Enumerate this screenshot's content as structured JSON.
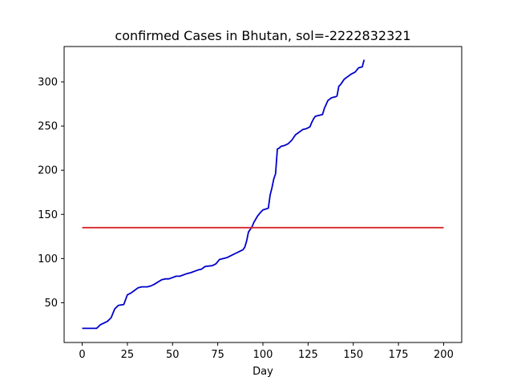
{
  "chart_data": {
    "type": "line",
    "title": "confirmed Cases in Bhutan, sol=-2222832321",
    "xlabel": "Day",
    "ylabel": "",
    "xlim": [
      -10,
      210
    ],
    "ylim": [
      5,
      340
    ],
    "xticks": [
      0,
      25,
      50,
      75,
      100,
      125,
      150,
      175,
      200
    ],
    "yticks": [
      50,
      100,
      150,
      200,
      250,
      300
    ],
    "grid": false,
    "series": [
      {
        "color": "#0000cc",
        "x": [
          0,
          8,
          10,
          12,
          14,
          16,
          18,
          20,
          23,
          25,
          27,
          29,
          31,
          33,
          36,
          38,
          40,
          44,
          46,
          48,
          52,
          54,
          58,
          60,
          64,
          66,
          68,
          72,
          74,
          76,
          78,
          80,
          83,
          85,
          87,
          89,
          90,
          91,
          92,
          93,
          94,
          95,
          97,
          99,
          100,
          103,
          104,
          105,
          106,
          107,
          108,
          109,
          110,
          112,
          114,
          116,
          118,
          120,
          122,
          124,
          126,
          127,
          128,
          129,
          131,
          133,
          134,
          136,
          138,
          140,
          141,
          142,
          143,
          144,
          145,
          147,
          149,
          151,
          153,
          155,
          156
        ],
        "values": [
          21,
          21,
          25,
          27,
          29,
          33,
          43,
          47,
          48,
          59,
          61,
          64,
          67,
          68,
          68,
          69,
          71,
          76,
          77,
          77,
          80,
          80,
          83,
          84,
          87,
          88,
          91,
          92,
          94,
          99,
          100,
          101,
          104,
          106,
          108,
          110,
          113,
          120,
          130,
          133,
          136,
          141,
          148,
          153,
          155,
          157,
          172,
          180,
          190,
          196,
          224,
          225,
          227,
          228,
          230,
          234,
          240,
          243,
          246,
          247,
          249,
          254,
          258,
          261,
          262,
          263,
          270,
          279,
          282,
          283,
          284,
          295,
          297,
          300,
          303,
          306,
          309,
          311,
          316,
          317,
          325
        ]
      },
      {
        "color": "#d62728",
        "x": [
          0,
          200
        ],
        "values": [
          135,
          135
        ]
      }
    ]
  }
}
